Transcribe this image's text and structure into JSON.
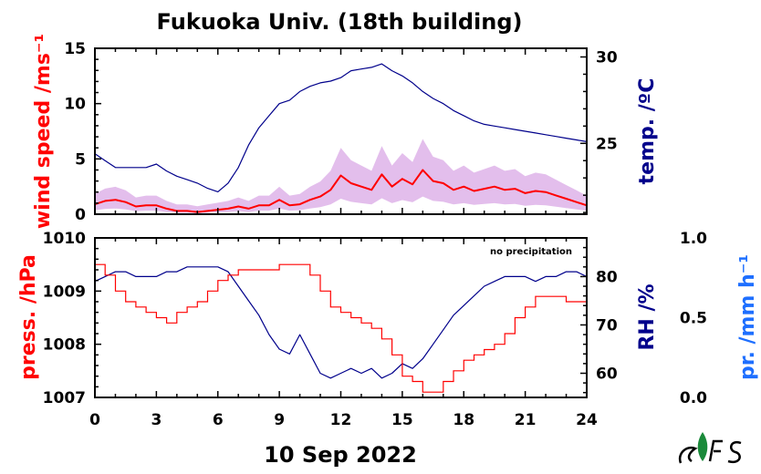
{
  "title": "Fukuoka Univ. (18th building)",
  "date_label": "10 Sep 2022",
  "annotation": "no precipitation",
  "colors": {
    "wind": "#ff0000",
    "wind_band": "#cc88dd",
    "temp": "#00008b",
    "pressure": "#ff0000",
    "rh": "#00008b",
    "precip": "#1e6fff",
    "axis": "#000000"
  },
  "x_axis": {
    "range": [
      0,
      24
    ],
    "ticks": [
      0,
      3,
      6,
      9,
      12,
      15,
      18,
      21,
      24
    ],
    "tick_labels": [
      "0",
      "3",
      "6",
      "9",
      "12",
      "15",
      "18",
      "21",
      "24"
    ]
  },
  "chart_data": [
    {
      "type": "line",
      "panel": "top",
      "ylabel_left": "wind speed /ms⁻¹",
      "ylabel_right": "temp. /ºC",
      "y_left": {
        "range": [
          0,
          15
        ],
        "ticks": [
          0,
          5,
          10,
          15
        ],
        "tick_labels": [
          "0",
          "5",
          "10",
          "15"
        ]
      },
      "y_right": {
        "range": [
          20.9,
          30.5
        ],
        "ticks": [
          25,
          30
        ],
        "tick_labels": [
          "25",
          "30"
        ]
      },
      "series": [
        {
          "key": "temp",
          "axis": "right",
          "x": [
            0,
            0.5,
            1,
            1.5,
            2,
            2.5,
            3,
            3.5,
            4,
            4.5,
            5,
            5.5,
            6,
            6.5,
            7,
            7.5,
            8,
            8.5,
            9,
            9.5,
            10,
            10.5,
            11,
            11.5,
            12,
            12.5,
            13,
            13.5,
            14,
            14.5,
            15,
            15.5,
            16,
            16.5,
            17,
            17.5,
            18,
            18.5,
            19,
            19.5,
            20,
            20.5,
            21,
            21.5,
            22,
            22.5,
            23,
            23.5,
            24
          ],
          "values": [
            24.4,
            24.0,
            23.6,
            23.6,
            23.6,
            23.6,
            23.8,
            23.4,
            23.1,
            22.9,
            22.7,
            22.4,
            22.2,
            22.7,
            23.6,
            24.9,
            25.9,
            26.6,
            27.3,
            27.5,
            28.0,
            28.3,
            28.5,
            28.6,
            28.8,
            29.2,
            29.3,
            29.4,
            29.6,
            29.2,
            28.9,
            28.5,
            28.0,
            27.6,
            27.3,
            26.9,
            26.6,
            26.3,
            26.1,
            26.0,
            25.9,
            25.8,
            25.7,
            25.6,
            25.5,
            25.4,
            25.3,
            25.2,
            25.1
          ]
        },
        {
          "key": "wind",
          "axis": "left",
          "x": [
            0,
            0.5,
            1,
            1.5,
            2,
            2.5,
            3,
            3.5,
            4,
            4.5,
            5,
            5.5,
            6,
            6.5,
            7,
            7.5,
            8,
            8.5,
            9,
            9.5,
            10,
            10.5,
            11,
            11.5,
            12,
            12.5,
            13,
            13.5,
            14,
            14.5,
            15,
            15.5,
            16,
            16.5,
            17,
            17.5,
            18,
            18.5,
            19,
            19.5,
            20,
            20.5,
            21,
            21.5,
            22,
            22.5,
            23,
            23.5,
            24
          ],
          "values": [
            0.9,
            1.2,
            1.3,
            1.1,
            0.7,
            0.8,
            0.8,
            0.5,
            0.3,
            0.3,
            0.2,
            0.3,
            0.4,
            0.5,
            0.7,
            0.5,
            0.8,
            0.8,
            1.3,
            0.8,
            0.9,
            1.3,
            1.6,
            2.2,
            3.5,
            2.8,
            2.5,
            2.2,
            3.6,
            2.5,
            3.2,
            2.7,
            4.0,
            3.0,
            2.8,
            2.2,
            2.5,
            2.1,
            2.3,
            2.5,
            2.2,
            2.3,
            1.9,
            2.1,
            2.0,
            1.7,
            1.4,
            1.1,
            0.8
          ]
        }
      ]
    },
    {
      "type": "line",
      "panel": "bottom",
      "ylabel_left": "press. /hPa",
      "ylabel_right": "RH /%",
      "ylabel_far_right": "pr. /mm h⁻¹",
      "y_left": {
        "range": [
          1007,
          1010
        ],
        "ticks": [
          1007,
          1008,
          1009,
          1010
        ],
        "tick_labels": [
          "1007",
          "1008",
          "1009",
          "1010"
        ]
      },
      "y_right": {
        "range": [
          55,
          88
        ],
        "ticks": [
          60,
          70,
          80
        ],
        "tick_labels": [
          "60",
          "70",
          "80"
        ]
      },
      "y_far_right": {
        "range": [
          0,
          1
        ],
        "ticks": [
          0,
          0.5,
          1
        ],
        "tick_labels": [
          "0.0",
          "0.5",
          "1.0"
        ]
      },
      "series": [
        {
          "key": "pressure",
          "axis": "left",
          "x": [
            0,
            0.5,
            1,
            1.5,
            2,
            2.5,
            3,
            3.5,
            4,
            4.5,
            5,
            5.5,
            6,
            6.5,
            7,
            7.5,
            8,
            8.5,
            9,
            9.5,
            10,
            10.5,
            11,
            11.5,
            12,
            12.5,
            13,
            13.5,
            14,
            14.5,
            15,
            15.5,
            16,
            16.5,
            17,
            17.5,
            18,
            18.5,
            19,
            19.5,
            20,
            20.5,
            21,
            21.5,
            22,
            22.5,
            23,
            23.5,
            24
          ],
          "values": [
            1009.5,
            1009.3,
            1009.0,
            1008.8,
            1008.7,
            1008.6,
            1008.5,
            1008.4,
            1008.6,
            1008.7,
            1008.8,
            1009.0,
            1009.2,
            1009.3,
            1009.4,
            1009.4,
            1009.4,
            1009.4,
            1009.5,
            1009.5,
            1009.5,
            1009.3,
            1009.0,
            1008.7,
            1008.6,
            1008.5,
            1008.4,
            1008.3,
            1008.1,
            1007.8,
            1007.4,
            1007.3,
            1007.1,
            1007.1,
            1007.3,
            1007.5,
            1007.7,
            1007.8,
            1007.9,
            1008.0,
            1008.2,
            1008.5,
            1008.7,
            1008.9,
            1008.9,
            1008.9,
            1008.8,
            1008.8,
            1008.6
          ]
        },
        {
          "key": "rh",
          "axis": "right",
          "x": [
            0,
            0.5,
            1,
            1.5,
            2,
            2.5,
            3,
            3.5,
            4,
            4.5,
            5,
            5.5,
            6,
            6.5,
            7,
            7.5,
            8,
            8.5,
            9,
            9.5,
            10,
            10.5,
            11,
            11.5,
            12,
            12.5,
            13,
            13.5,
            14,
            14.5,
            15,
            15.5,
            16,
            16.5,
            17,
            17.5,
            18,
            18.5,
            19,
            19.5,
            20,
            20.5,
            21,
            21.5,
            22,
            22.5,
            23,
            23.5,
            24
          ],
          "values": [
            79,
            80,
            81,
            81,
            80,
            80,
            80,
            81,
            81,
            82,
            82,
            82,
            82,
            81,
            78,
            75,
            72,
            68,
            65,
            64,
            68,
            64,
            60,
            59,
            60,
            61,
            60,
            61,
            59,
            60,
            62,
            61,
            63,
            66,
            69,
            72,
            74,
            76,
            78,
            79,
            80,
            80,
            80,
            79,
            80,
            80,
            81,
            81,
            80
          ]
        }
      ]
    }
  ]
}
